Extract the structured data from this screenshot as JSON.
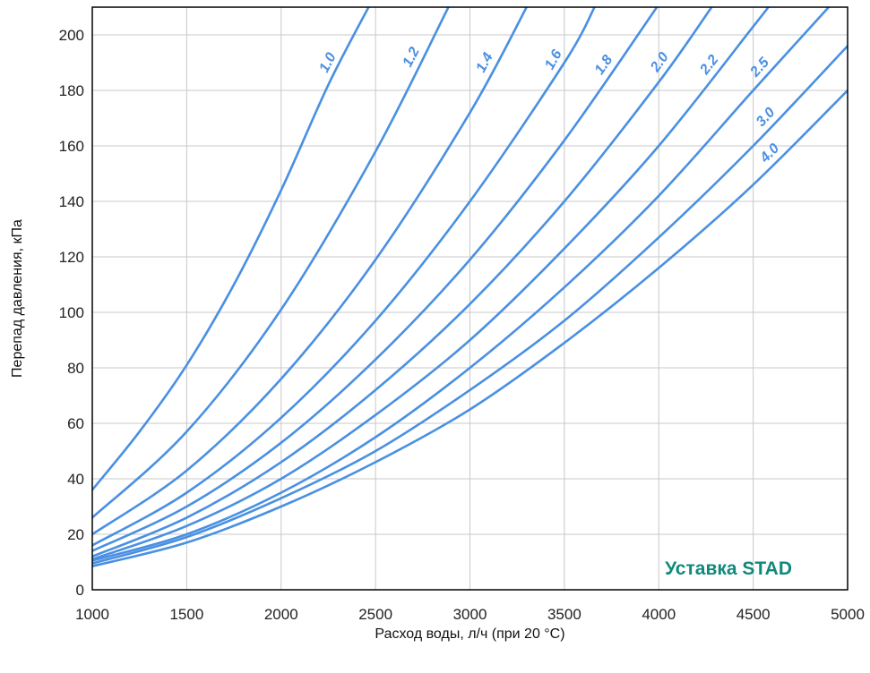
{
  "chart_data": {
    "type": "line",
    "title": "",
    "xlabel": "Расход воды, л/ч (при 20 °C)",
    "ylabel": "Перепад давления, кПа",
    "xlim": [
      1000,
      5000
    ],
    "ylim": [
      0,
      210
    ],
    "x_ticks": [
      1000,
      1500,
      2000,
      2500,
      3000,
      3500,
      4000,
      4500,
      5000
    ],
    "y_ticks": [
      0,
      20,
      40,
      60,
      80,
      100,
      120,
      140,
      160,
      180,
      200
    ],
    "x_tick_labels": [
      "1000",
      "1500",
      "2000",
      "2500",
      "3000",
      "3500",
      "4000",
      "4500",
      "5000"
    ],
    "y_tick_labels": [
      "0",
      "20",
      "40",
      "60",
      "80",
      "100",
      "120",
      "140",
      "160",
      "180",
      "200"
    ],
    "grid": true,
    "legend": "none",
    "annotation": "Уставка STAD",
    "colors": {
      "curve": "#4a90e2",
      "grid": "#c8c8c8",
      "frame": "#000000",
      "annotation": "#0f8a7a"
    },
    "series": [
      {
        "name": "1.0",
        "x": [
          1000,
          1250,
          1500,
          1750,
          2000,
          2250,
          2463
        ],
        "y": [
          36,
          57,
          81,
          110,
          144,
          182,
          210
        ]
      },
      {
        "name": "1.2",
        "x": [
          1000,
          1500,
          2000,
          2500,
          2886
        ],
        "y": [
          26,
          57,
          101,
          158,
          210
        ]
      },
      {
        "name": "1.4",
        "x": [
          1000,
          1500,
          2000,
          2500,
          3000,
          3300
        ],
        "y": [
          20,
          43,
          76,
          119,
          172,
          210
        ]
      },
      {
        "name": "1.6",
        "x": [
          1000,
          1500,
          2000,
          2500,
          3000,
          3500,
          3660
        ],
        "y": [
          16,
          35,
          62,
          97,
          140,
          190,
          210
        ]
      },
      {
        "name": "1.8",
        "x": [
          1000,
          1500,
          2000,
          2500,
          3000,
          3500,
          3990
        ],
        "y": [
          14,
          30,
          53,
          83,
          119,
          162,
          210
        ]
      },
      {
        "name": "2.0",
        "x": [
          1000,
          1500,
          2000,
          2500,
          3000,
          3500,
          4000,
          4280
        ],
        "y": [
          12,
          26,
          46,
          72,
          103,
          140,
          183,
          210
        ]
      },
      {
        "name": "2.2",
        "x": [
          1000,
          1500,
          2000,
          2500,
          3000,
          3500,
          4000,
          4500,
          4580
        ],
        "y": [
          11,
          23,
          40,
          63,
          90,
          123,
          160,
          203,
          210
        ]
      },
      {
        "name": "2.5",
        "x": [
          1000,
          1500,
          2000,
          2500,
          3000,
          3500,
          4000,
          4500,
          4900
        ],
        "y": [
          10.5,
          20,
          35,
          55,
          80,
          109,
          142,
          180,
          210
        ]
      },
      {
        "name": "3.0",
        "x": [
          1000,
          1500,
          2000,
          2500,
          3000,
          3500,
          4000,
          4500,
          5000
        ],
        "y": [
          9.5,
          19,
          33,
          50,
          72,
          97,
          127,
          160,
          196
        ]
      },
      {
        "name": "4.0",
        "x": [
          1000,
          1500,
          2000,
          2500,
          3000,
          3500,
          4000,
          4500,
          5000
        ],
        "y": [
          8.5,
          17,
          30,
          46,
          65,
          89,
          116,
          146,
          180
        ]
      }
    ]
  }
}
